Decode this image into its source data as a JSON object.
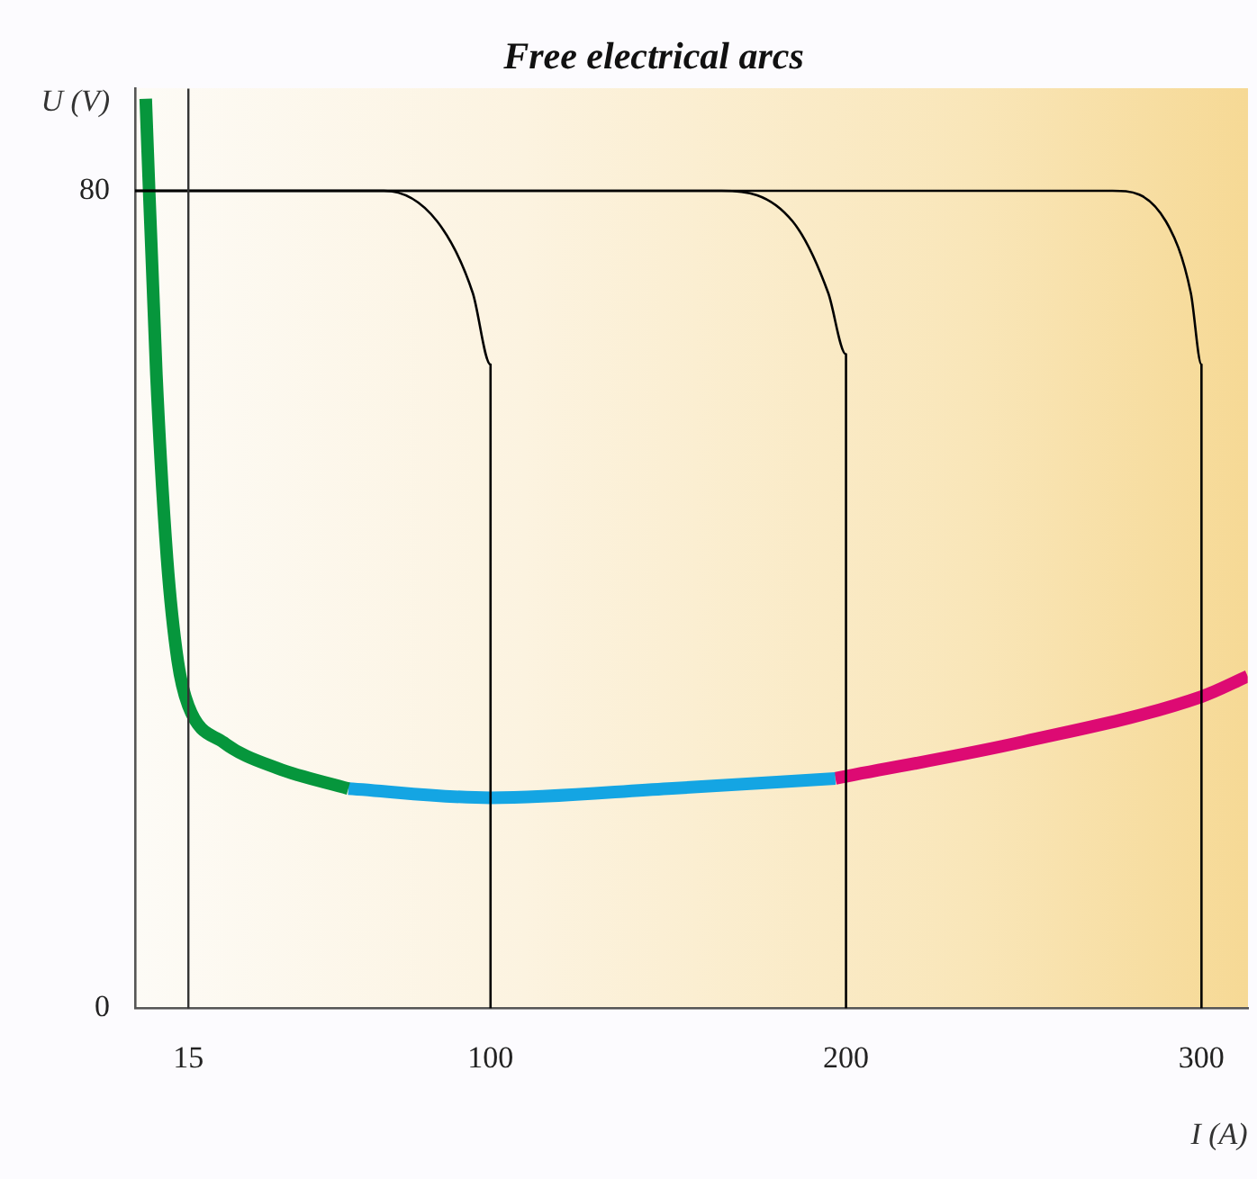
{
  "chart_data": {
    "type": "line",
    "title": "Free electrical arcs",
    "xlabel": "I (A)",
    "ylabel": "U (V)",
    "xlim": [
      0,
      313
    ],
    "ylim": [
      0,
      90
    ],
    "xticks": [
      15,
      100,
      200,
      300
    ],
    "yticks": [
      0,
      80
    ],
    "grid": false,
    "legend": false,
    "marker": "none",
    "line_style": "solid",
    "ref_lines": [
      {
        "axis": "x",
        "value": 15,
        "color": "#333333"
      }
    ],
    "series": [
      {
        "color": "#000000",
        "x": [
          0,
          70,
          85,
          95,
          100,
          100
        ],
        "values": [
          80,
          80,
          77,
          70,
          63,
          0
        ]
      },
      {
        "color": "#000000",
        "x": [
          0,
          165,
          185,
          195,
          200,
          200
        ],
        "values": [
          80,
          80,
          77,
          70,
          64,
          0
        ]
      },
      {
        "color": "#000000",
        "x": [
          0,
          275,
          290,
          297,
          300,
          300
        ],
        "values": [
          80,
          80,
          77,
          70,
          63,
          0
        ]
      },
      {
        "color": "#06963c",
        "x": [
          3,
          6,
          9,
          12,
          15,
          25,
          40,
          60
        ],
        "values": [
          89,
          62,
          44,
          34,
          29.6,
          26,
          23.5,
          21.5
        ]
      },
      {
        "color": "#14a5e3",
        "x": [
          60,
          100,
          150,
          197
        ],
        "values": [
          21.5,
          20.6,
          21.5,
          22.5
        ]
      },
      {
        "color": "#dd0a73",
        "x": [
          197,
          250,
          300,
          313
        ],
        "values": [
          22.5,
          26.1,
          30.5,
          32.5
        ]
      }
    ]
  }
}
